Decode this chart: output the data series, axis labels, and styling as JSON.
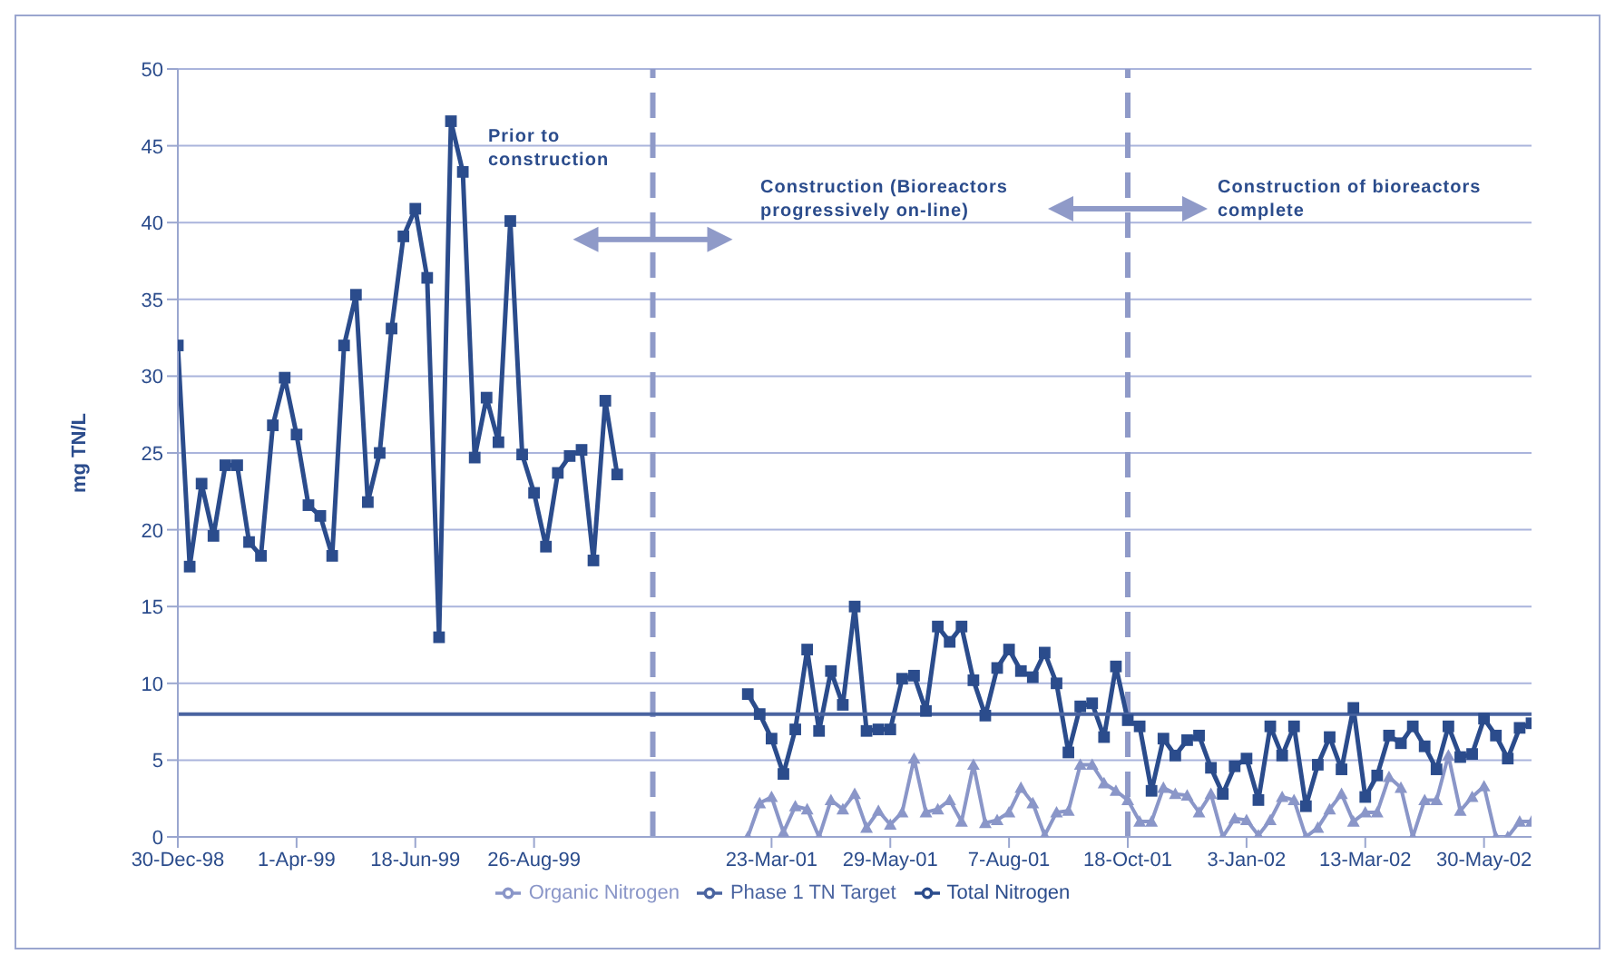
{
  "chart_data": {
    "type": "line",
    "ylabel": "mg TN/L",
    "categories": [
      "30-Dec-98",
      null,
      null,
      null,
      null,
      null,
      null,
      null,
      null,
      null,
      "1-Apr-99",
      null,
      null,
      null,
      null,
      null,
      null,
      null,
      null,
      null,
      "18-Jun-99",
      null,
      null,
      null,
      null,
      null,
      null,
      null,
      null,
      null,
      "26-Aug-99",
      null,
      null,
      null,
      null,
      null,
      null,
      null,
      null,
      null,
      null,
      null,
      null,
      null,
      null,
      null,
      null,
      null,
      null,
      null,
      "23-Mar-01",
      null,
      null,
      null,
      null,
      null,
      null,
      null,
      null,
      null,
      "29-May-01",
      null,
      null,
      null,
      null,
      null,
      null,
      null,
      null,
      null,
      "7-Aug-01",
      null,
      null,
      null,
      null,
      null,
      null,
      null,
      null,
      null,
      "18-Oct-01",
      null,
      null,
      null,
      null,
      null,
      null,
      null,
      null,
      null,
      "3-Jan-02",
      null,
      null,
      null,
      null,
      null,
      null,
      null,
      null,
      null,
      "13-Mar-02",
      null,
      null,
      null,
      null,
      null,
      null,
      null,
      null,
      null,
      "30-May-02",
      null,
      null,
      null,
      null
    ],
    "ylim": [
      0,
      50
    ],
    "yticks": [
      0,
      5,
      10,
      15,
      20,
      25,
      30,
      35,
      40,
      45,
      50
    ],
    "grid": "y",
    "legend": "bottom",
    "series": [
      {
        "name": "Total Nitrogen",
        "color": "#2b4c8c",
        "marker": "square",
        "values": [
          32,
          17.6,
          23,
          19.6,
          24.2,
          24.2,
          19.2,
          18.3,
          26.8,
          29.9,
          26.2,
          21.6,
          20.9,
          18.3,
          32,
          35.3,
          21.8,
          25,
          33.1,
          39.1,
          40.9,
          36.4,
          13,
          46.6,
          43.3,
          24.7,
          28.6,
          25.7,
          40.1,
          24.9,
          22.4,
          18.9,
          23.7,
          24.8,
          25.2,
          18,
          28.4,
          23.6,
          null,
          null,
          null,
          null,
          null,
          null,
          null,
          null,
          null,
          null,
          9.3,
          8.0,
          6.4,
          4.1,
          7.0,
          12.2,
          6.9,
          10.8,
          8.6,
          15.0,
          6.9,
          7.0,
          7.0,
          10.3,
          10.5,
          8.2,
          13.7,
          12.7,
          13.7,
          10.2,
          7.9,
          11.0,
          12.2,
          10.8,
          10.4,
          12.0,
          10.0,
          5.5,
          8.5,
          8.7,
          6.5,
          11.1,
          7.6,
          7.2,
          3.0,
          6.4,
          5.3,
          6.3,
          6.6,
          4.5,
          2.8,
          4.6,
          5.1,
          2.4,
          7.2,
          5.3,
          7.2,
          2.0,
          4.7,
          6.5,
          4.4,
          8.4,
          2.6,
          4.0,
          6.6,
          6.1,
          7.2,
          5.9,
          4.4,
          7.2,
          5.2,
          5.4,
          7.7,
          6.6,
          5.1,
          7.1,
          7.4
        ]
      },
      {
        "name": "Phase 1 TN Target",
        "color": "#4a64a0",
        "marker": "none",
        "values": [
          8,
          8,
          8,
          8,
          8,
          8,
          8,
          8,
          8,
          8,
          8,
          8,
          8,
          8,
          8,
          8,
          8,
          8,
          8,
          8,
          8,
          8,
          8,
          8,
          8,
          8,
          8,
          8,
          8,
          8,
          8,
          8,
          8,
          8,
          8,
          8,
          8,
          8,
          8,
          8,
          8,
          8,
          8,
          8,
          8,
          8,
          8,
          8,
          8,
          8,
          8,
          8,
          8,
          8,
          8,
          8,
          8,
          8,
          8,
          8,
          8,
          8,
          8,
          8,
          8,
          8,
          8,
          8,
          8,
          8,
          8,
          8,
          8,
          8,
          8,
          8,
          8,
          8,
          8,
          8,
          8,
          8,
          8,
          8,
          8,
          8,
          8,
          8,
          8,
          8,
          8,
          8,
          8,
          8,
          8,
          8,
          8,
          8,
          8,
          8,
          8,
          8,
          8,
          8,
          8,
          8,
          8,
          8,
          8,
          8,
          8,
          8,
          8,
          8,
          8
        ]
      },
      {
        "name": "Organic Nitrogen",
        "color": "#8a96c8",
        "marker": "triangle",
        "values": [
          null,
          null,
          null,
          null,
          null,
          null,
          null,
          null,
          null,
          null,
          null,
          null,
          null,
          null,
          null,
          null,
          null,
          null,
          null,
          null,
          null,
          null,
          null,
          null,
          null,
          null,
          null,
          null,
          null,
          null,
          null,
          null,
          null,
          null,
          null,
          null,
          null,
          null,
          null,
          null,
          null,
          null,
          null,
          null,
          null,
          null,
          null,
          null,
          0,
          2.2,
          2.6,
          0.3,
          2.0,
          1.8,
          0,
          2.4,
          1.8,
          2.8,
          0.6,
          1.7,
          0.8,
          1.6,
          5.1,
          1.6,
          1.8,
          2.4,
          1.0,
          4.7,
          0.9,
          1.1,
          1.6,
          3.2,
          2.2,
          0.1,
          1.6,
          1.7,
          4.7,
          4.7,
          3.5,
          3.0,
          2.4,
          1.0,
          1.0,
          3.2,
          2.8,
          2.7,
          1.6,
          2.8,
          0,
          1.2,
          1.1,
          0.1,
          1.1,
          2.6,
          2.4,
          0,
          0.6,
          1.8,
          2.8,
          1.0,
          1.6,
          1.6,
          3.9,
          3.2,
          0,
          2.4,
          2.4,
          5.3,
          1.7,
          2.6,
          3.3,
          0,
          0,
          1.0,
          1.0
        ]
      }
    ],
    "ref_lines": [
      {
        "axis": "x",
        "color": "#8f9ac8",
        "line_style": "dashed"
      },
      {
        "axis": "x",
        "value": "18-Oct-01",
        "color": "#8f9ac8",
        "line_style": "dashed"
      }
    ],
    "annotations": [
      "Prior to construction",
      "Construction (Bioreactors progressively on-line)",
      "Construction of bioreactors complete"
    ]
  }
}
